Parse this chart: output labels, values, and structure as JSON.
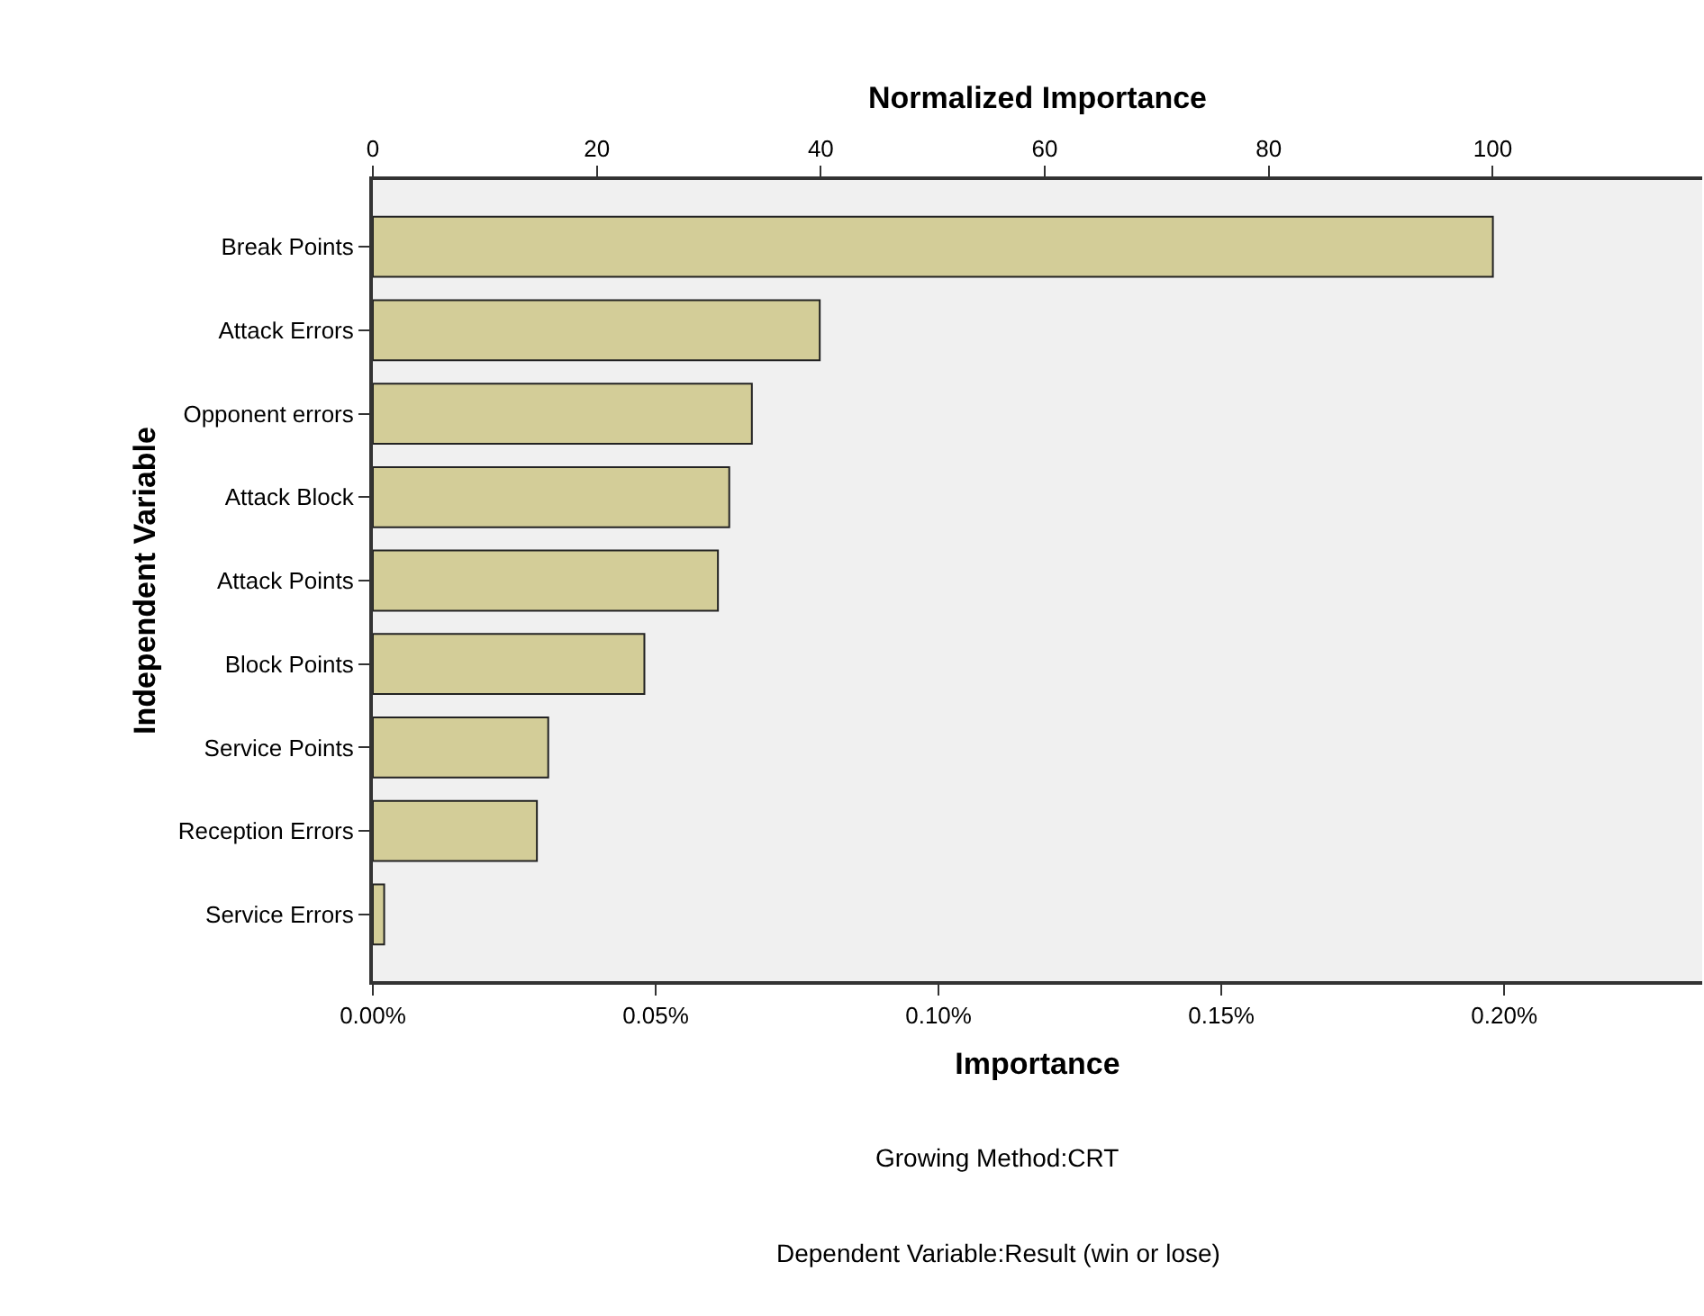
{
  "chart_data": {
    "type": "bar",
    "orientation": "horizontal",
    "x2label": "Normalized Importance",
    "xlabel": "Importance",
    "ylabel": "Independent Variable",
    "categories": [
      "Break Points",
      "Attack Errors",
      "Opponent errors",
      "Attack Block",
      "Attack Points",
      "Block Points",
      "Service Points",
      "Reception Errors",
      "Service Errors"
    ],
    "values": [
      0.198,
      0.079,
      0.067,
      0.063,
      0.061,
      0.048,
      0.031,
      0.029,
      0.002
    ],
    "color": "#d3cd98",
    "xlim": [
      0,
      0.235
    ],
    "xticks": [
      {
        "value": 0,
        "label": "0.00%"
      },
      {
        "value": 0.05,
        "label": "0.05%"
      },
      {
        "value": 0.1,
        "label": "0.10%"
      },
      {
        "value": 0.15,
        "label": "0.15%"
      },
      {
        "value": 0.2,
        "label": "0.20%"
      }
    ],
    "x2lim": [
      0,
      118.7
    ],
    "x2ticks": [
      0,
      20,
      40,
      60,
      80,
      100
    ],
    "grid": false,
    "legend": false,
    "annotations": [
      "Growing Method:CRT",
      "Dependent Variable:Result (win or lose)"
    ]
  }
}
